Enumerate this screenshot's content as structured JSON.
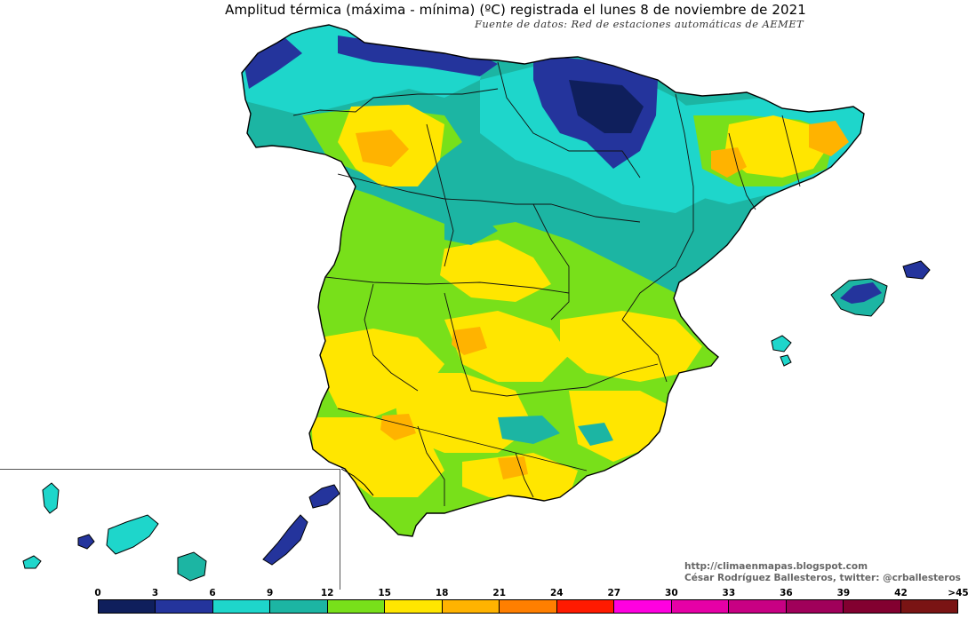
{
  "title": "Amplitud térmica (máxima - mínima) (ºC) registrada el lunes 8 de noviembre de 2021",
  "subtitle": "Fuente de datos: Red de estaciones automáticas de AEMET",
  "credits": {
    "blog": "http://climaenmapas.blogspot.com",
    "author": "César Rodríguez Ballesteros, twitter: @crballesteros"
  },
  "legend": {
    "ticks": [
      "0",
      "3",
      "6",
      "9",
      "12",
      "15",
      "18",
      "21",
      "24",
      "27",
      "30",
      "33",
      "36",
      "39",
      "42",
      ">45"
    ],
    "colors": [
      "#0f1f5c",
      "#24349c",
      "#1ed6cb",
      "#1cb5a3",
      "#78e01a",
      "#ffe600",
      "#ffb300",
      "#ff7f00",
      "#ff1a00",
      "#ff00e0",
      "#e600a6",
      "#c80083",
      "#a0005a",
      "#820030",
      "#7a1414"
    ]
  },
  "map_colors": {
    "ocean": "#ffffff",
    "border": "#111111",
    "inset_frame": "#555555"
  }
}
